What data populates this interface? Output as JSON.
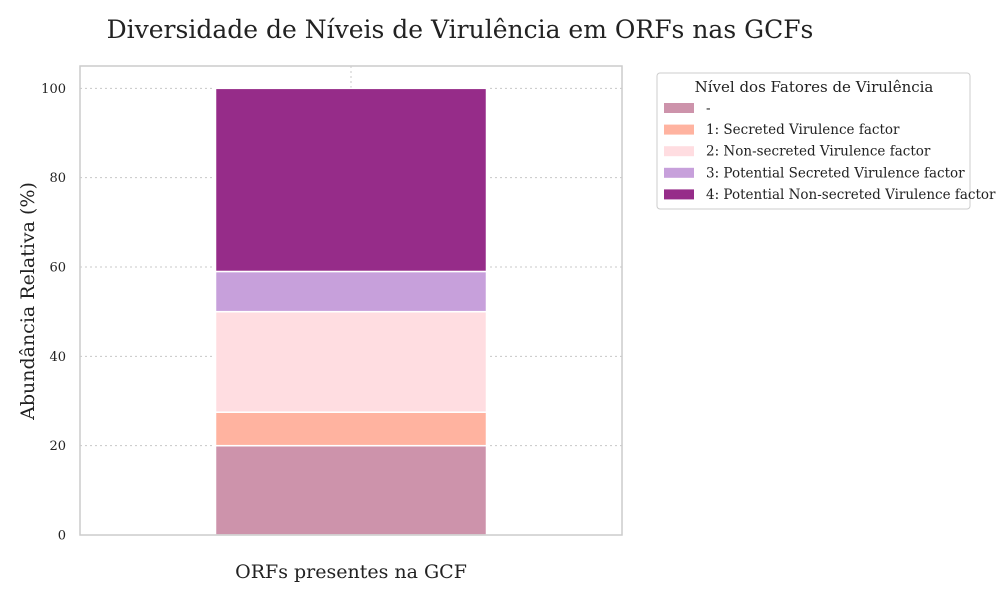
{
  "chart_data": {
    "type": "bar",
    "stacked": true,
    "title": "Diversidade de Níveis de Virulência em ORFs nas GCFs",
    "xlabel": "ORFs presentes na GCF",
    "ylabel": "Abundância Relativa (%)",
    "ylim": [
      0,
      105
    ],
    "yticks": [
      0,
      20,
      40,
      60,
      80,
      100
    ],
    "categories": [
      ""
    ],
    "grid": true,
    "legend": {
      "title": "Nível dos Fatores de Virulência",
      "placement": "outside-top-right"
    },
    "series": [
      {
        "name": "-",
        "values": [
          20.0
        ],
        "color": "#cd93ab"
      },
      {
        "name": "1: Secreted Virulence factor",
        "values": [
          7.5
        ],
        "color": "#ffb3a0"
      },
      {
        "name": "2: Non-secreted Virulence factor",
        "values": [
          22.5
        ],
        "color": "#ffdde1"
      },
      {
        "name": "3: Potential Secreted Virulence factor",
        "values": [
          9.0
        ],
        "color": "#c7a0db"
      },
      {
        "name": "4: Potential Non-secreted Virulence factor",
        "values": [
          41.0
        ],
        "color": "#962c89"
      }
    ]
  }
}
